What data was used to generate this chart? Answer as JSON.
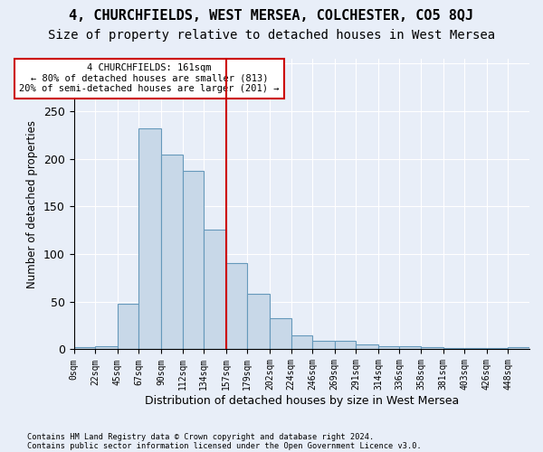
{
  "title": "4, CHURCHFIELDS, WEST MERSEA, COLCHESTER, CO5 8QJ",
  "subtitle": "Size of property relative to detached houses in West Mersea",
  "xlabel": "Distribution of detached houses by size in West Mersea",
  "ylabel": "Number of detached properties",
  "footnote1": "Contains HM Land Registry data © Crown copyright and database right 2024.",
  "footnote2": "Contains public sector information licensed under the Open Government Licence v3.0.",
  "bin_labels": [
    "0sqm",
    "22sqm",
    "45sqm",
    "67sqm",
    "90sqm",
    "112sqm",
    "134sqm",
    "157sqm",
    "179sqm",
    "202sqm",
    "224sqm",
    "246sqm",
    "269sqm",
    "291sqm",
    "314sqm",
    "336sqm",
    "358sqm",
    "381sqm",
    "403sqm",
    "426sqm",
    "448sqm"
  ],
  "bar_values": [
    2,
    3,
    48,
    232,
    204,
    187,
    126,
    91,
    58,
    33,
    15,
    9,
    9,
    5,
    3,
    3,
    2,
    1,
    1,
    1,
    2
  ],
  "bar_color": "#c8d8e8",
  "bar_edge_color": "#6699bb",
  "annotation_box_text": "4 CHURCHFIELDS: 161sqm\n← 80% of detached houses are smaller (813)\n20% of semi-detached houses are larger (201) →",
  "annotation_box_color": "#ffffff",
  "annotation_box_edge_color": "#cc0000",
  "vline_x": 157,
  "vline_color": "#cc0000",
  "ylim": [
    0,
    305
  ],
  "bin_edges": [
    0,
    22,
    45,
    67,
    90,
    112,
    134,
    157,
    179,
    202,
    224,
    246,
    269,
    291,
    314,
    336,
    358,
    381,
    403,
    426,
    448,
    470
  ],
  "background_color": "#e8eef8",
  "title_fontsize": 11,
  "subtitle_fontsize": 10
}
